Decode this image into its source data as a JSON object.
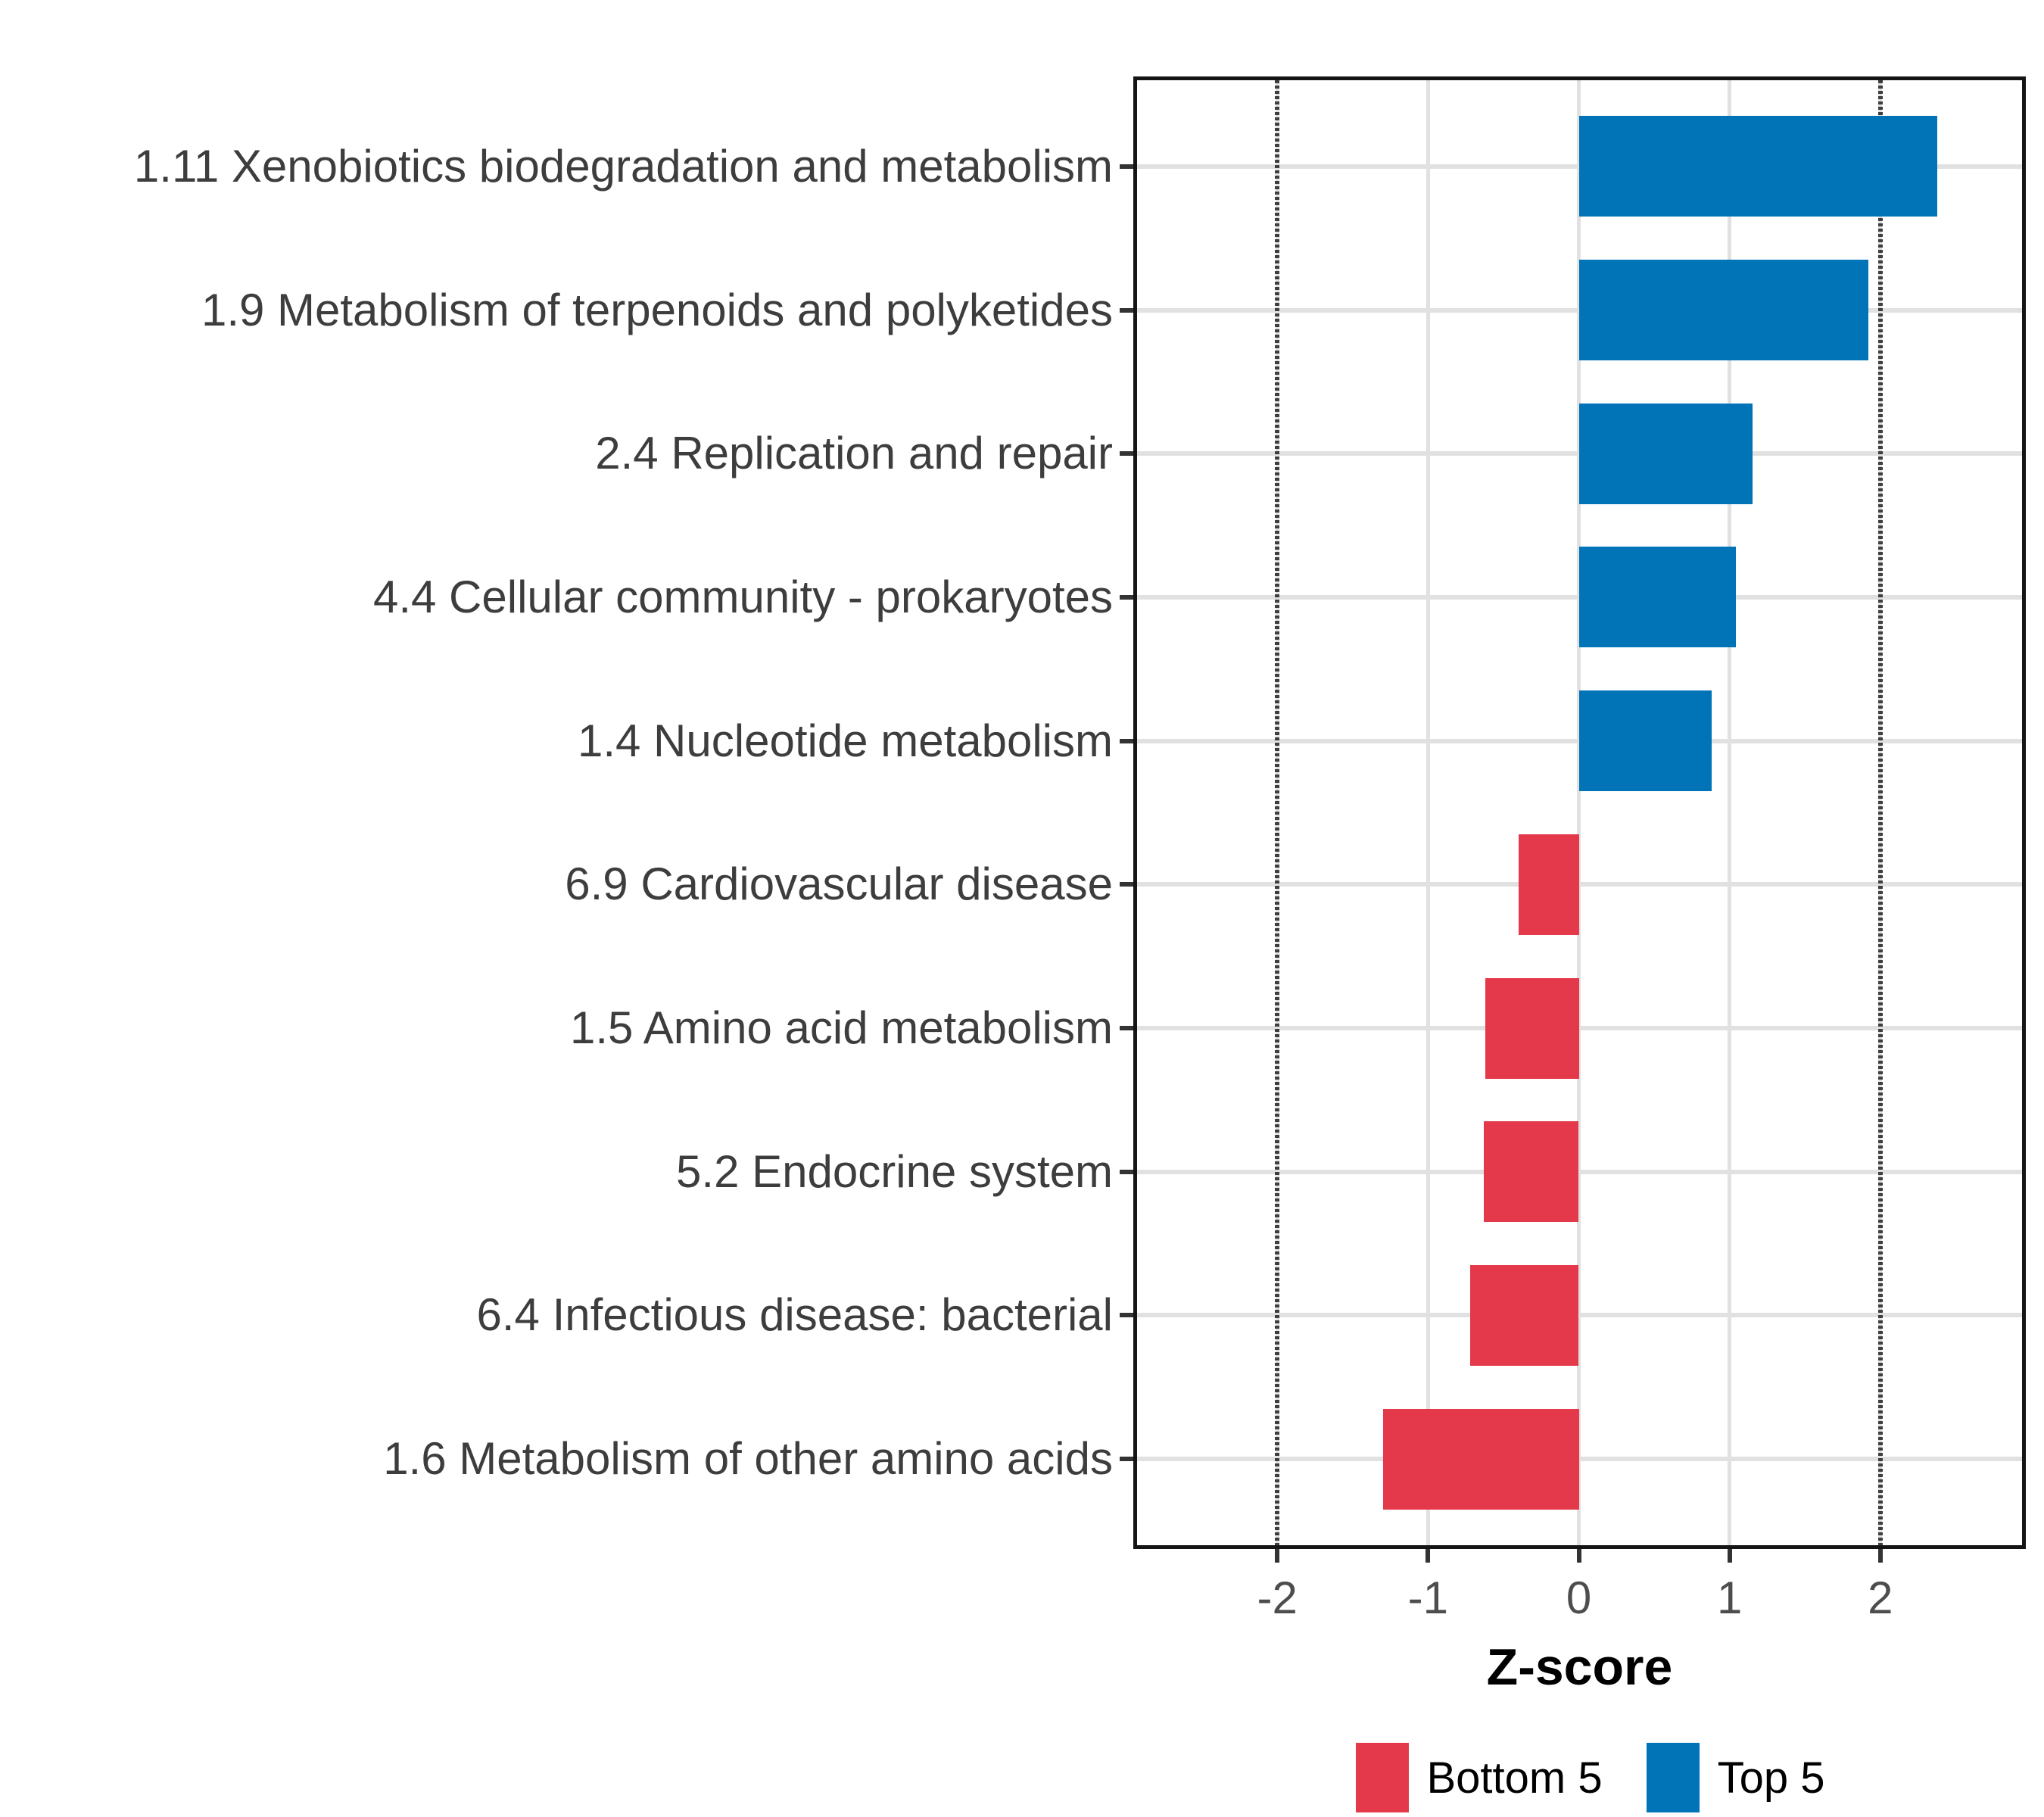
{
  "figure": {
    "background": "#ffffff"
  },
  "chart_data": {
    "type": "bar",
    "orientation": "horizontal",
    "title": "",
    "xlabel": "Z-score",
    "ylabel": "",
    "x_ticks": [
      -2,
      -1,
      0,
      1,
      2
    ],
    "xlim": [
      -2.93,
      2.94
    ],
    "grid": {
      "major": true,
      "color": "#E1E1E1"
    },
    "reference_lines": {
      "values": [
        -2,
        2
      ],
      "style": "dotted",
      "color": "#3f3f3f"
    },
    "bars": [
      {
        "label": "1.11 Xenobiotics biodegradation and metabolism",
        "value": 2.38,
        "group": "Top 5"
      },
      {
        "label": "1.9 Metabolism of terpenoids and polyketides",
        "value": 1.92,
        "group": "Top 5"
      },
      {
        "label": "2.4 Replication and repair",
        "value": 1.15,
        "group": "Top 5"
      },
      {
        "label": "4.4 Cellular community - prokaryotes",
        "value": 1.04,
        "group": "Top 5"
      },
      {
        "label": "1.4 Nucleotide metabolism",
        "value": 0.88,
        "group": "Top 5"
      },
      {
        "label": "6.9 Cardiovascular disease",
        "value": -0.4,
        "group": "Bottom 5"
      },
      {
        "label": "1.5 Amino acid metabolism",
        "value": -0.62,
        "group": "Bottom 5"
      },
      {
        "label": "5.2 Endocrine system",
        "value": -0.63,
        "group": "Bottom 5"
      },
      {
        "label": "6.4 Infectious disease: bacterial",
        "value": -0.72,
        "group": "Bottom 5"
      },
      {
        "label": "1.6 Metabolism of other amino acids",
        "value": -1.3,
        "group": "Bottom 5"
      }
    ],
    "colors": {
      "Bottom 5": "#E4394A",
      "Top 5": "#0074B6"
    },
    "legend": {
      "position": "bottom",
      "entries": [
        {
          "label": "Bottom 5",
          "color": "#E4394A"
        },
        {
          "label": "Top 5",
          "color": "#0074B6"
        }
      ]
    }
  }
}
